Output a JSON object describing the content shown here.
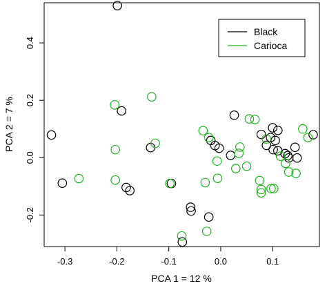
{
  "chart_data": {
    "type": "scatter",
    "title": "",
    "xlabel": "PCA 1 = 12 %",
    "ylabel": "PCA 2 = 7 %",
    "xlim": [
      -0.34,
      0.19
    ],
    "ylim": [
      -0.31,
      0.54
    ],
    "x_ticks": [
      {
        "value": -0.3,
        "label": "-0.3"
      },
      {
        "value": -0.2,
        "label": "-0.2"
      },
      {
        "value": -0.1,
        "label": "-0.1"
      },
      {
        "value": 0.0,
        "label": "0.0"
      },
      {
        "value": 0.1,
        "label": "0.1"
      }
    ],
    "y_ticks": [
      {
        "value": -0.2,
        "label": "-0.2"
      },
      {
        "value": 0.0,
        "label": "0.0"
      },
      {
        "value": 0.2,
        "label": "0.2"
      },
      {
        "value": 0.4,
        "label": "0.4"
      }
    ],
    "grid": false,
    "legend_position": "top-right",
    "series": [
      {
        "name": "Black",
        "color": "#000000",
        "points": [
          [
            -0.199,
            0.53
          ],
          [
            -0.191,
            0.163
          ],
          [
            -0.326,
            0.079
          ],
          [
            -0.135,
            0.035
          ],
          [
            -0.305,
            -0.089
          ],
          [
            -0.182,
            -0.104
          ],
          [
            -0.175,
            -0.115
          ],
          [
            -0.095,
            -0.09
          ],
          [
            -0.058,
            -0.173
          ],
          [
            -0.057,
            -0.186
          ],
          [
            -0.023,
            -0.207
          ],
          [
            -0.074,
            -0.294
          ],
          [
            0.026,
            0.148
          ],
          [
            -0.019,
            0.06
          ],
          [
            -0.011,
            0.042
          ],
          [
            -0.003,
            0.033
          ],
          [
            0.019,
            0.008
          ],
          [
            0.078,
            0.081
          ],
          [
            0.1,
            0.104
          ],
          [
            0.11,
            0.095
          ],
          [
            0.096,
            0.07
          ],
          [
            0.105,
            0.06
          ],
          [
            0.088,
            0.043
          ],
          [
            0.101,
            0.028
          ],
          [
            0.11,
            0.024
          ],
          [
            0.124,
            0.014
          ],
          [
            0.129,
            0.007
          ],
          [
            0.131,
            -0.001
          ],
          [
            0.143,
            0.036
          ],
          [
            0.147,
            -0.001
          ],
          [
            0.178,
            0.08
          ]
        ]
      },
      {
        "name": "Carioca",
        "color": "#1db31d",
        "points": [
          [
            -0.204,
            0.184
          ],
          [
            -0.133,
            0.212
          ],
          [
            -0.126,
            0.05
          ],
          [
            -0.203,
            0.028
          ],
          [
            -0.273,
            -0.073
          ],
          [
            -0.203,
            -0.078
          ],
          [
            -0.098,
            -0.09
          ],
          [
            -0.075,
            -0.273
          ],
          [
            -0.027,
            -0.257
          ],
          [
            -0.03,
            -0.087
          ],
          [
            -0.006,
            -0.072
          ],
          [
            -0.034,
            0.094
          ],
          [
            -0.023,
            0.07
          ],
          [
            -0.007,
            -0.012
          ],
          [
            0.037,
            0.037
          ],
          [
            0.035,
            0.015
          ],
          [
            0.029,
            -0.038
          ],
          [
            0.05,
            -0.03
          ],
          [
            0.055,
            0.135
          ],
          [
            0.066,
            0.133
          ],
          [
            0.075,
            -0.08
          ],
          [
            0.078,
            -0.111
          ],
          [
            0.078,
            -0.123
          ],
          [
            0.088,
            0.065
          ],
          [
            0.097,
            -0.108
          ],
          [
            0.102,
            -0.108
          ],
          [
            0.115,
            0.005
          ],
          [
            0.125,
            -0.02
          ],
          [
            0.131,
            -0.05
          ],
          [
            0.145,
            -0.055
          ],
          [
            0.158,
            0.1
          ],
          [
            0.168,
            0.07
          ]
        ]
      }
    ]
  }
}
